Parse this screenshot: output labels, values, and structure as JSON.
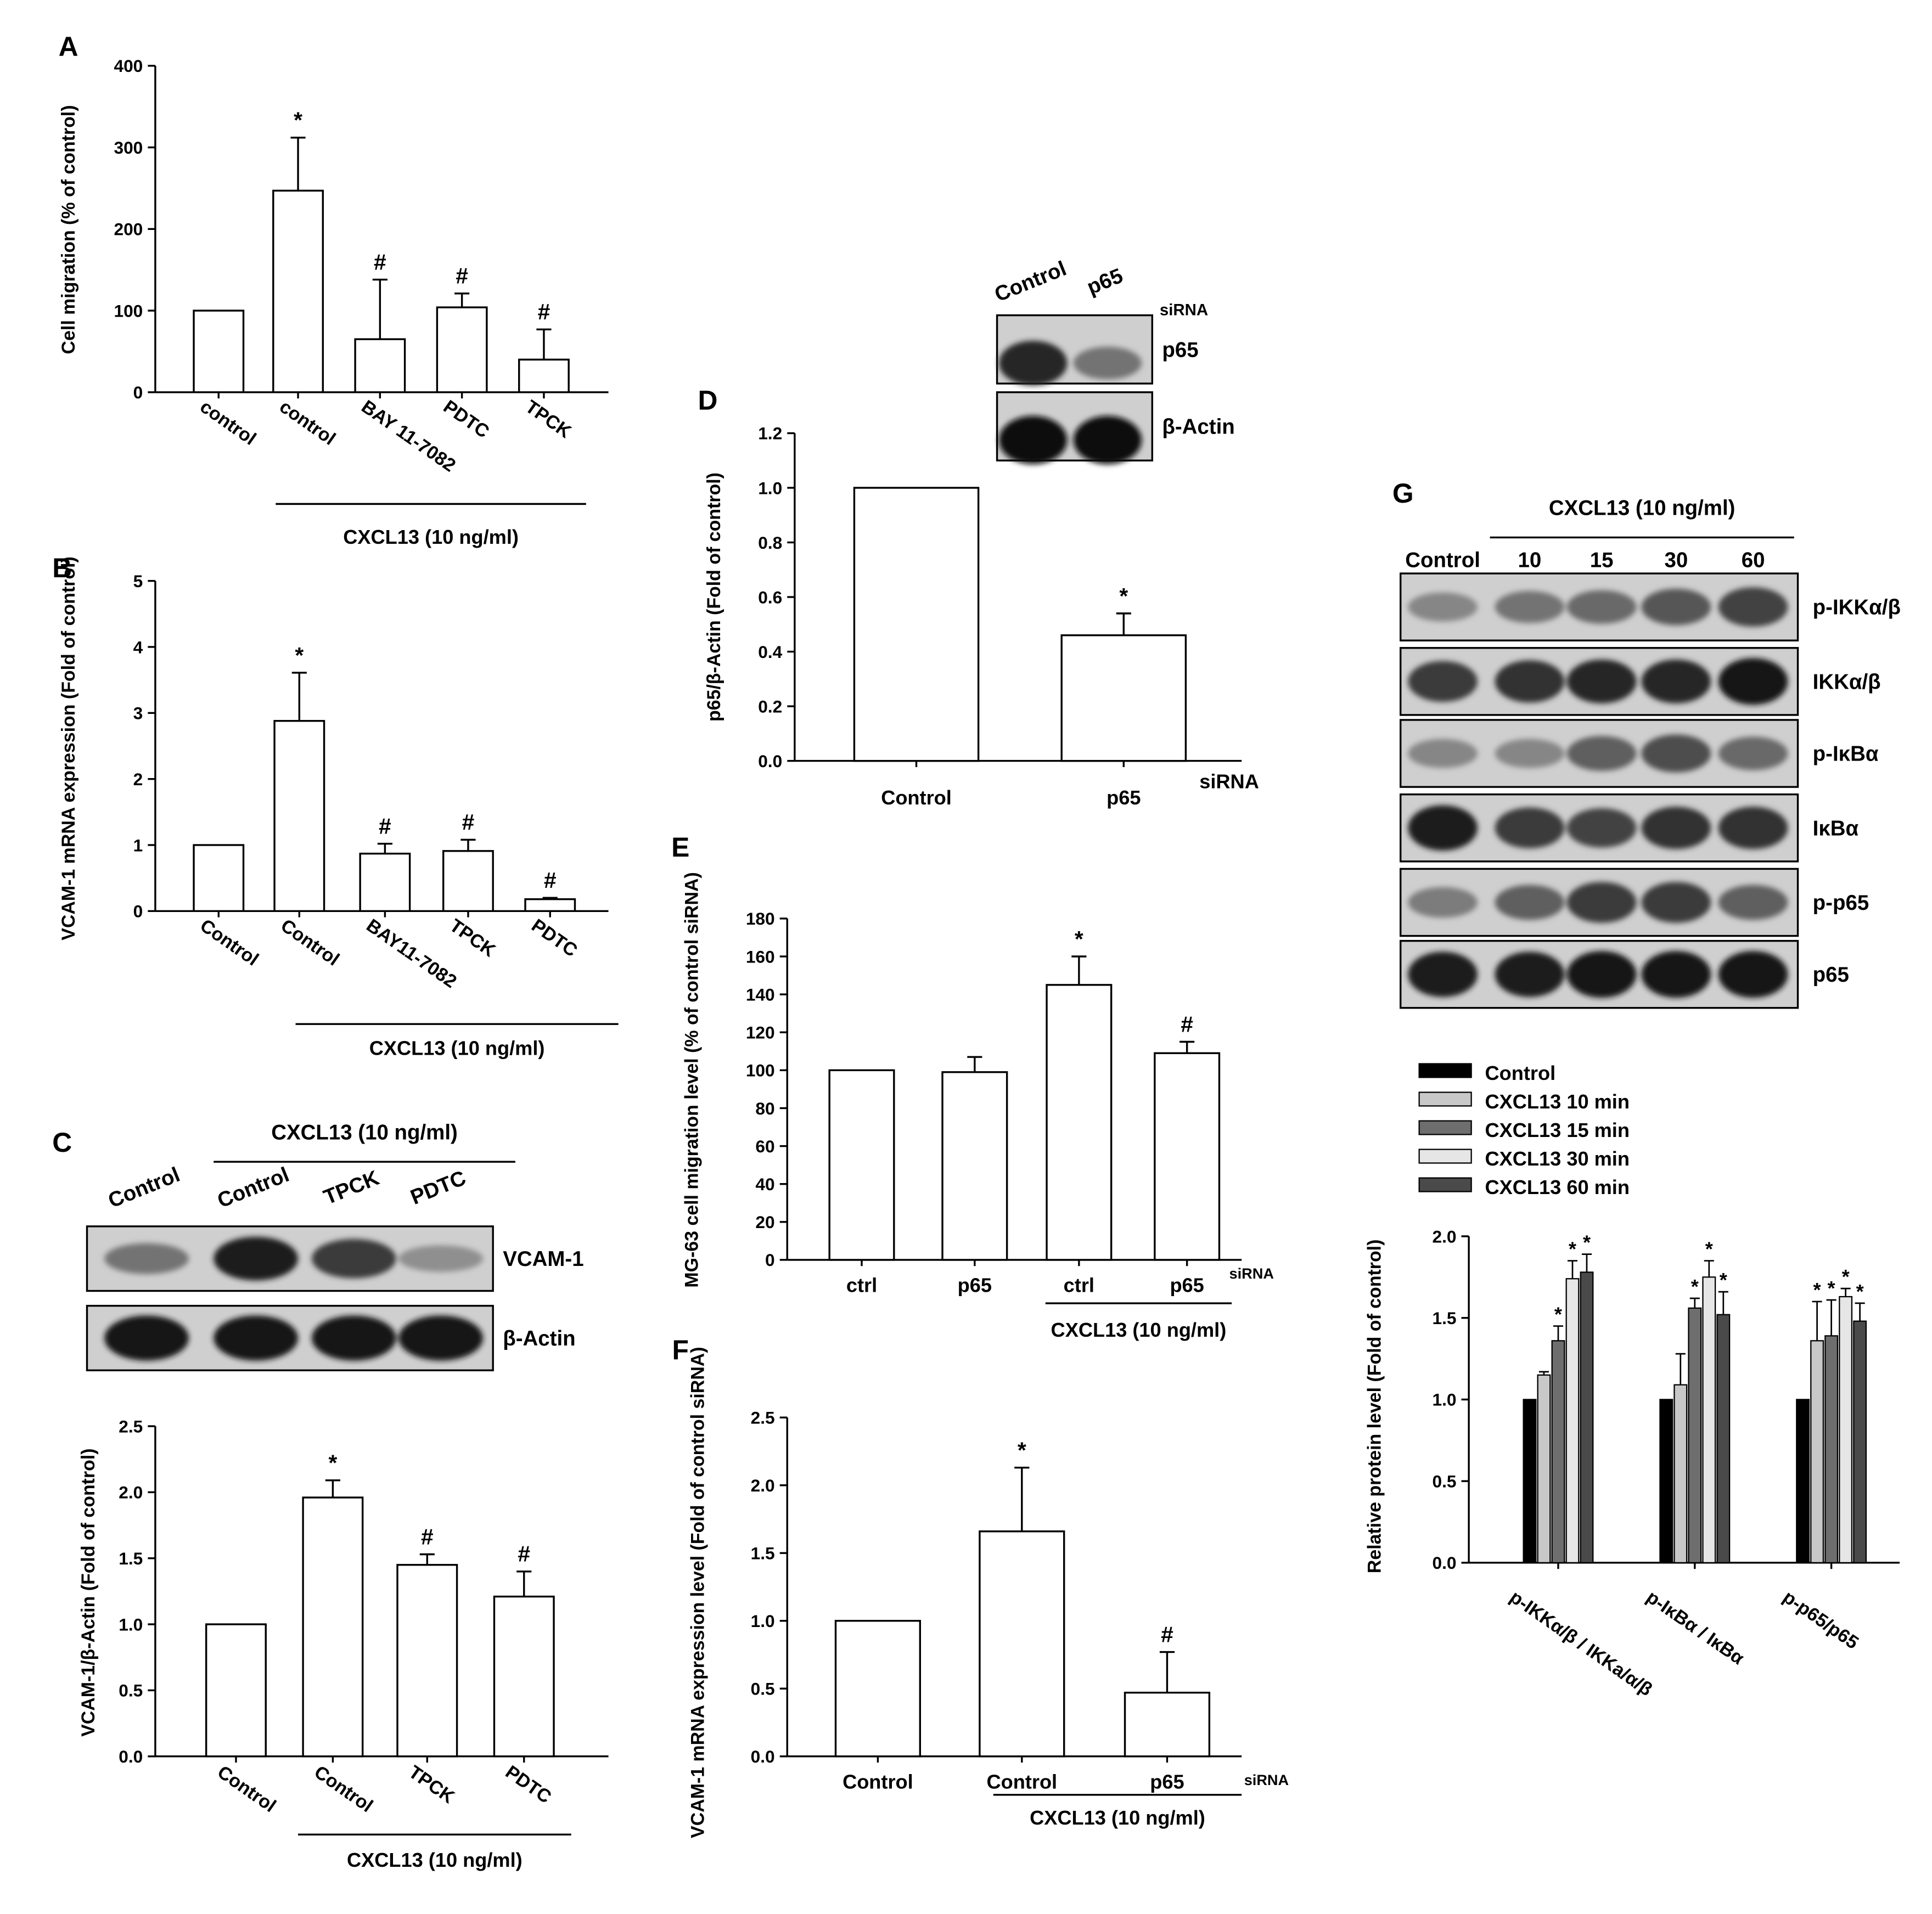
{
  "panels": [
    {
      "label": "A",
      "x": 55,
      "y": 45
    },
    {
      "label": "B",
      "x": 50,
      "y": 465
    },
    {
      "label": "C",
      "x": 50,
      "y": 928
    },
    {
      "label": "D",
      "x": 570,
      "y": 330
    },
    {
      "label": "E",
      "x": 548,
      "y": 690
    },
    {
      "label": "F",
      "x": 548,
      "y": 1095
    },
    {
      "label": "G",
      "x": 1130,
      "y": 405
    }
  ],
  "chart_data": [
    {
      "id": "A",
      "type": "bar",
      "categories": [
        "control",
        "control",
        "BAY 11-7082",
        "PDTC",
        "TPCK"
      ],
      "values": [
        100,
        247,
        65,
        104,
        40
      ],
      "errors": [
        0,
        65,
        73,
        17,
        37
      ],
      "annotations": [
        "",
        "*",
        "#",
        "#",
        "#"
      ],
      "ylabel": "Cell migration (% of control)",
      "yticks": [
        0,
        100,
        200,
        300,
        400
      ],
      "ylim": [
        0,
        400
      ],
      "group_label": "CXCL13 (10 ng/ml)"
    },
    {
      "id": "B",
      "type": "bar",
      "categories": [
        "Control",
        "Control",
        "BAY11-7082",
        "TPCK",
        "PDTC"
      ],
      "values": [
        1.0,
        2.88,
        0.87,
        0.91,
        0.18
      ],
      "errors": [
        0,
        0.73,
        0.15,
        0.17,
        0.02
      ],
      "annotations": [
        "",
        "*",
        "#",
        "#",
        "#"
      ],
      "ylabel": "VCAM-1 mRNA expression (Fold of control)",
      "yticks": [
        0,
        1,
        2,
        3,
        4,
        5
      ],
      "ylim": [
        0,
        5
      ],
      "group_label": "CXCL13 (10 ng/ml)"
    },
    {
      "id": "C",
      "type": "bar",
      "categories": [
        "Control",
        "Control",
        "TPCK",
        "PDTC"
      ],
      "values": [
        1.0,
        1.96,
        1.45,
        1.21
      ],
      "errors": [
        0,
        0.13,
        0.08,
        0.19
      ],
      "annotations": [
        "",
        "*",
        "#",
        "#"
      ],
      "ylabel": "VCAM-1/β-Actin (Fold of control)",
      "yticks": [
        "0.0",
        "0.5",
        "1.0",
        "1.5",
        "2.0",
        "2.5"
      ],
      "ylim": [
        0,
        2.5
      ],
      "group_label": "CXCL13 (10 ng/ml)"
    },
    {
      "id": "D",
      "type": "bar",
      "categories": [
        "Control",
        "p65"
      ],
      "values": [
        1.0,
        0.46
      ],
      "errors": [
        0,
        0.08
      ],
      "annotations": [
        "",
        "*"
      ],
      "ylabel": "p65/β-Actin (Fold of control)",
      "yticks": [
        "0.0",
        "0.2",
        "0.4",
        "0.6",
        "0.8",
        "1.0",
        "1.2"
      ],
      "ylim": [
        0,
        1.2
      ],
      "suffix": "siRNA"
    },
    {
      "id": "E",
      "type": "bar",
      "categories": [
        "ctrl",
        "p65",
        "ctrl",
        "p65"
      ],
      "values": [
        100,
        99,
        145,
        109
      ],
      "errors": [
        0,
        8,
        15,
        6
      ],
      "annotations": [
        "",
        "",
        "*",
        "#"
      ],
      "ylabel": "MG-63 cell migration level (% of control siRNA)",
      "yticks": [
        0,
        20,
        40,
        60,
        80,
        100,
        120,
        140,
        160,
        180
      ],
      "ylim": [
        0,
        180
      ],
      "group_label": "CXCL13 (10 ng/ml)",
      "suffix": "siRNA"
    },
    {
      "id": "F",
      "type": "bar",
      "categories": [
        "Control",
        "Control",
        "p65"
      ],
      "values": [
        1.0,
        1.66,
        0.47
      ],
      "errors": [
        0,
        0.47,
        0.3
      ],
      "annotations": [
        "",
        "*",
        "#"
      ],
      "ylabel": "VCAM-1 mRNA expression level (Fold of control siRNA)",
      "yticks": [
        "0.0",
        "0.5",
        "1.0",
        "1.5",
        "2.0",
        "2.5"
      ],
      "ylim": [
        0,
        2.5
      ],
      "group_label": "CXCL13 (10 ng/ml)",
      "suffix": "siRNA"
    },
    {
      "id": "G",
      "type": "bar",
      "categories": [
        "p-IKKα/β / IKKa/α/β",
        "p-IκBα / IκBα",
        "p-p65/p65"
      ],
      "series": [
        {
          "name": "Control",
          "color": "#000000",
          "values": [
            1.0,
            1.0,
            1.0
          ],
          "errors": [
            0,
            0,
            0
          ],
          "annotations": [
            "",
            "",
            ""
          ]
        },
        {
          "name": "CXCL13 10 min",
          "color": "#c8c8c8",
          "values": [
            1.15,
            1.09,
            1.36
          ],
          "errors": [
            0.02,
            0.19,
            0.24
          ],
          "annotations": [
            "",
            "",
            "*"
          ]
        },
        {
          "name": "CXCL13 15 min",
          "color": "#6e6e6e",
          "values": [
            1.36,
            1.56,
            1.39
          ],
          "errors": [
            0.09,
            0.06,
            0.22
          ],
          "annotations": [
            "*",
            "*",
            "*"
          ]
        },
        {
          "name": "CXCL13 30 min",
          "color": "#e6e6e6",
          "values": [
            1.74,
            1.75,
            1.63
          ],
          "errors": [
            0.11,
            0.1,
            0.05
          ],
          "annotations": [
            "*",
            "*",
            "*"
          ]
        },
        {
          "name": "CXCL13 60 min",
          "color": "#4a4a4a",
          "values": [
            1.78,
            1.52,
            1.48
          ],
          "errors": [
            0.11,
            0.14,
            0.11
          ],
          "annotations": [
            "*",
            "*",
            "*"
          ]
        }
      ],
      "ylabel": "Relative protein level (Fold of control)",
      "yticks": [
        "0.0",
        "0.5",
        "1.0",
        "1.5",
        "2.0"
      ],
      "ylim": [
        0,
        2.0
      ]
    }
  ],
  "blots": {
    "C": {
      "header": "CXCL13 (10 ng/ml)",
      "lanes": [
        "Control",
        "Control",
        "TPCK",
        "PDTC"
      ],
      "rows": [
        {
          "label": "VCAM-1",
          "intensity": [
            0.45,
            0.9,
            0.75,
            0.3
          ]
        },
        {
          "label": "β-Actin",
          "intensity": [
            0.95,
            0.95,
            0.95,
            0.95
          ]
        }
      ]
    },
    "D": {
      "lanes": [
        "Control",
        "p65"
      ],
      "suffix": "siRNA",
      "rows": [
        {
          "label": "p65",
          "intensity": [
            0.85,
            0.45
          ]
        },
        {
          "label": "β-Actin",
          "intensity": [
            0.97,
            0.97
          ]
        }
      ]
    },
    "G": {
      "header": "CXCL13 (10 ng/ml)",
      "lanes": [
        "Control",
        "10",
        "15",
        "30",
        "60"
      ],
      "rows": [
        {
          "label": "p-IKKα/β",
          "intensity": [
            0.35,
            0.45,
            0.5,
            0.6,
            0.7
          ]
        },
        {
          "label": "IKKα/β",
          "intensity": [
            0.75,
            0.8,
            0.85,
            0.85,
            0.95
          ]
        },
        {
          "label": "p-IκBα",
          "intensity": [
            0.35,
            0.35,
            0.55,
            0.65,
            0.5
          ]
        },
        {
          "label": "IκBα",
          "intensity": [
            0.9,
            0.75,
            0.7,
            0.8,
            0.8
          ]
        },
        {
          "label": "p-p65",
          "intensity": [
            0.4,
            0.55,
            0.75,
            0.75,
            0.55
          ]
        },
        {
          "label": "p65",
          "intensity": [
            0.9,
            0.9,
            0.95,
            0.95,
            0.95
          ]
        }
      ]
    }
  }
}
